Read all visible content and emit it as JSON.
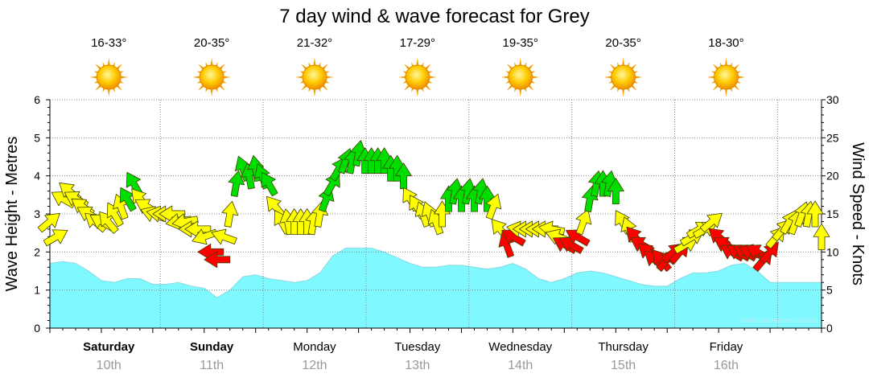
{
  "chart_data": {
    "type": "area",
    "title": "7 day wind & wave forecast for Grey",
    "ylabel_left": "Wave Height - Metres",
    "ylabel_right": "Wind Speed - Knots",
    "ylim_left": [
      0,
      6
    ],
    "ylim_right": [
      0,
      30
    ],
    "yticks_left": [
      "0",
      "1",
      "2",
      "3",
      "4",
      "5",
      "6"
    ],
    "yticks_right": [
      "0",
      "5",
      "10",
      "15",
      "20",
      "25",
      "30"
    ],
    "days": [
      {
        "name": "Saturday",
        "date": "10th",
        "temp": "16-33°",
        "bold": true
      },
      {
        "name": "Sunday",
        "date": "11th",
        "temp": "20-35°",
        "bold": true
      },
      {
        "name": "Monday",
        "date": "12th",
        "temp": "21-32°",
        "bold": false
      },
      {
        "name": "Tuesday",
        "date": "13th",
        "temp": "17-29°",
        "bold": false
      },
      {
        "name": "Wednesday",
        "date": "14th",
        "temp": "19-35°",
        "bold": false
      },
      {
        "name": "Thursday",
        "date": "15th",
        "temp": "20-35°",
        "bold": false
      },
      {
        "name": "Friday",
        "date": "16th",
        "temp": "18-30°",
        "bold": false
      }
    ],
    "x_hours": [
      0,
      84,
      168
    ],
    "wave_height": [
      [
        0,
        1.7
      ],
      [
        6,
        1.75
      ],
      [
        12,
        1.7
      ],
      [
        18,
        1.5
      ],
      [
        24,
        1.25
      ],
      [
        30,
        1.2
      ],
      [
        36,
        1.3
      ],
      [
        42,
        1.3
      ],
      [
        48,
        1.15
      ],
      [
        54,
        1.15
      ],
      [
        60,
        1.2
      ],
      [
        66,
        1.1
      ],
      [
        72,
        1.05
      ],
      [
        78,
        0.8
      ],
      [
        84,
        1.0
      ],
      [
        90,
        1.35
      ],
      [
        96,
        1.4
      ],
      [
        102,
        1.3
      ],
      [
        108,
        1.25
      ],
      [
        114,
        1.2
      ],
      [
        120,
        1.25
      ],
      [
        126,
        1.45
      ],
      [
        132,
        1.9
      ],
      [
        138,
        2.1
      ],
      [
        144,
        2.1
      ],
      [
        150,
        2.1
      ],
      [
        156,
        2.0
      ],
      [
        162,
        1.85
      ],
      [
        168,
        1.7
      ],
      [
        174,
        1.6
      ],
      [
        180,
        1.6
      ],
      [
        186,
        1.65
      ],
      [
        192,
        1.65
      ],
      [
        198,
        1.6
      ],
      [
        204,
        1.55
      ],
      [
        210,
        1.6
      ],
      [
        216,
        1.7
      ],
      [
        222,
        1.55
      ],
      [
        228,
        1.3
      ],
      [
        234,
        1.2
      ],
      [
        240,
        1.3
      ],
      [
        246,
        1.45
      ],
      [
        252,
        1.5
      ],
      [
        258,
        1.45
      ],
      [
        264,
        1.35
      ],
      [
        270,
        1.25
      ],
      [
        276,
        1.15
      ],
      [
        282,
        1.1
      ],
      [
        288,
        1.1
      ],
      [
        294,
        1.3
      ],
      [
        300,
        1.45
      ],
      [
        306,
        1.45
      ],
      [
        312,
        1.5
      ],
      [
        318,
        1.65
      ],
      [
        324,
        1.7
      ],
      [
        330,
        1.5
      ],
      [
        336,
        1.2
      ],
      [
        342,
        1.2
      ],
      [
        348,
        1.2
      ],
      [
        354,
        1.2
      ],
      [
        360,
        1.2
      ]
    ],
    "wind": [
      {
        "h": 0,
        "kt": 14,
        "dir": 50,
        "c": "yellow"
      },
      {
        "h": 3,
        "kt": 12,
        "dir": 60,
        "c": "yellow"
      },
      {
        "h": 6,
        "kt": 17,
        "dir": 300,
        "c": "yellow"
      },
      {
        "h": 9,
        "kt": 18,
        "dir": 310,
        "c": "yellow"
      },
      {
        "h": 12,
        "kt": 17,
        "dir": 300,
        "c": "yellow"
      },
      {
        "h": 15,
        "kt": 16,
        "dir": 305,
        "c": "yellow"
      },
      {
        "h": 18,
        "kt": 15,
        "dir": 300,
        "c": "yellow"
      },
      {
        "h": 21,
        "kt": 14,
        "dir": 310,
        "c": "yellow"
      },
      {
        "h": 24,
        "kt": 14,
        "dir": 300,
        "c": "yellow"
      },
      {
        "h": 27,
        "kt": 14,
        "dir": 320,
        "c": "yellow"
      },
      {
        "h": 30,
        "kt": 15,
        "dir": 330,
        "c": "yellow"
      },
      {
        "h": 33,
        "kt": 16,
        "dir": 340,
        "c": "yellow"
      },
      {
        "h": 36,
        "kt": 17,
        "dir": 330,
        "c": "green"
      },
      {
        "h": 39,
        "kt": 19,
        "dir": 330,
        "c": "green"
      },
      {
        "h": 42,
        "kt": 17,
        "dir": 320,
        "c": "yellow"
      },
      {
        "h": 45,
        "kt": 16,
        "dir": 300,
        "c": "yellow"
      },
      {
        "h": 48,
        "kt": 15,
        "dir": 290,
        "c": "yellow"
      },
      {
        "h": 51,
        "kt": 15,
        "dir": 280,
        "c": "yellow"
      },
      {
        "h": 54,
        "kt": 15,
        "dir": 270,
        "c": "yellow"
      },
      {
        "h": 57,
        "kt": 15,
        "dir": 270,
        "c": "yellow"
      },
      {
        "h": 60,
        "kt": 14,
        "dir": 260,
        "c": "yellow"
      },
      {
        "h": 63,
        "kt": 14,
        "dir": 260,
        "c": "yellow"
      },
      {
        "h": 66,
        "kt": 13,
        "dir": 270,
        "c": "yellow"
      },
      {
        "h": 69,
        "kt": 13,
        "dir": 270,
        "c": "yellow"
      },
      {
        "h": 72,
        "kt": 12,
        "dir": 250,
        "c": "yellow"
      },
      {
        "h": 75,
        "kt": 10,
        "dir": 270,
        "c": "red"
      },
      {
        "h": 78,
        "kt": 9,
        "dir": 270,
        "c": "red"
      },
      {
        "h": 81,
        "kt": 12,
        "dir": 290,
        "c": "yellow"
      },
      {
        "h": 84,
        "kt": 15,
        "dir": 10,
        "c": "yellow"
      },
      {
        "h": 87,
        "kt": 19,
        "dir": 10,
        "c": "green"
      },
      {
        "h": 90,
        "kt": 21,
        "dir": 340,
        "c": "green"
      },
      {
        "h": 93,
        "kt": 20,
        "dir": 350,
        "c": "green"
      },
      {
        "h": 96,
        "kt": 21,
        "dir": 350,
        "c": "green"
      },
      {
        "h": 99,
        "kt": 20,
        "dir": 340,
        "c": "green"
      },
      {
        "h": 102,
        "kt": 19,
        "dir": 330,
        "c": "green"
      },
      {
        "h": 105,
        "kt": 16,
        "dir": 320,
        "c": "yellow"
      },
      {
        "h": 108,
        "kt": 14,
        "dir": 330,
        "c": "yellow"
      },
      {
        "h": 111,
        "kt": 14,
        "dir": 350,
        "c": "yellow"
      },
      {
        "h": 114,
        "kt": 14,
        "dir": 0,
        "c": "yellow"
      },
      {
        "h": 117,
        "kt": 14,
        "dir": 0,
        "c": "yellow"
      },
      {
        "h": 120,
        "kt": 14,
        "dir": 0,
        "c": "yellow"
      },
      {
        "h": 123,
        "kt": 14,
        "dir": 10,
        "c": "yellow"
      },
      {
        "h": 126,
        "kt": 15,
        "dir": 10,
        "c": "yellow"
      },
      {
        "h": 129,
        "kt": 17,
        "dir": 20,
        "c": "green"
      },
      {
        "h": 132,
        "kt": 19,
        "dir": 30,
        "c": "green"
      },
      {
        "h": 135,
        "kt": 21,
        "dir": 30,
        "c": "green"
      },
      {
        "h": 138,
        "kt": 22,
        "dir": 20,
        "c": "green"
      },
      {
        "h": 141,
        "kt": 22,
        "dir": 10,
        "c": "green"
      },
      {
        "h": 144,
        "kt": 23,
        "dir": 10,
        "c": "green"
      },
      {
        "h": 147,
        "kt": 22,
        "dir": 0,
        "c": "green"
      },
      {
        "h": 150,
        "kt": 22,
        "dir": 0,
        "c": "green"
      },
      {
        "h": 153,
        "kt": 22,
        "dir": 0,
        "c": "green"
      },
      {
        "h": 156,
        "kt": 22,
        "dir": 0,
        "c": "green"
      },
      {
        "h": 159,
        "kt": 21,
        "dir": 0,
        "c": "green"
      },
      {
        "h": 162,
        "kt": 21,
        "dir": 0,
        "c": "green"
      },
      {
        "h": 165,
        "kt": 20,
        "dir": 0,
        "c": "green"
      },
      {
        "h": 168,
        "kt": 17,
        "dir": 330,
        "c": "yellow"
      },
      {
        "h": 171,
        "kt": 16,
        "dir": 330,
        "c": "yellow"
      },
      {
        "h": 174,
        "kt": 15,
        "dir": 340,
        "c": "yellow"
      },
      {
        "h": 177,
        "kt": 15,
        "dir": 340,
        "c": "yellow"
      },
      {
        "h": 180,
        "kt": 14,
        "dir": 340,
        "c": "yellow"
      },
      {
        "h": 183,
        "kt": 15,
        "dir": 0,
        "c": "yellow"
      },
      {
        "h": 186,
        "kt": 17,
        "dir": 0,
        "c": "green"
      },
      {
        "h": 189,
        "kt": 18,
        "dir": 10,
        "c": "green"
      },
      {
        "h": 192,
        "kt": 17,
        "dir": 0,
        "c": "green"
      },
      {
        "h": 195,
        "kt": 18,
        "dir": 10,
        "c": "green"
      },
      {
        "h": 198,
        "kt": 17,
        "dir": 0,
        "c": "green"
      },
      {
        "h": 201,
        "kt": 18,
        "dir": 10,
        "c": "green"
      },
      {
        "h": 204,
        "kt": 17,
        "dir": 0,
        "c": "green"
      },
      {
        "h": 207,
        "kt": 16,
        "dir": 20,
        "c": "yellow"
      },
      {
        "h": 210,
        "kt": 13,
        "dir": 320,
        "c": "yellow"
      },
      {
        "h": 213,
        "kt": 11,
        "dir": 340,
        "c": "red"
      },
      {
        "h": 216,
        "kt": 12,
        "dir": 300,
        "c": "red"
      },
      {
        "h": 219,
        "kt": 13,
        "dir": 280,
        "c": "yellow"
      },
      {
        "h": 222,
        "kt": 13,
        "dir": 270,
        "c": "yellow"
      },
      {
        "h": 225,
        "kt": 13,
        "dir": 270,
        "c": "yellow"
      },
      {
        "h": 228,
        "kt": 13,
        "dir": 270,
        "c": "yellow"
      },
      {
        "h": 231,
        "kt": 13,
        "dir": 270,
        "c": "yellow"
      },
      {
        "h": 234,
        "kt": 13,
        "dir": 280,
        "c": "yellow"
      },
      {
        "h": 237,
        "kt": 12,
        "dir": 290,
        "c": "yellow"
      },
      {
        "h": 240,
        "kt": 11,
        "dir": 300,
        "c": "red"
      },
      {
        "h": 243,
        "kt": 11,
        "dir": 300,
        "c": "red"
      },
      {
        "h": 246,
        "kt": 12,
        "dir": 300,
        "c": "red"
      },
      {
        "h": 249,
        "kt": 14,
        "dir": 20,
        "c": "yellow"
      },
      {
        "h": 252,
        "kt": 17,
        "dir": 10,
        "c": "green"
      },
      {
        "h": 255,
        "kt": 19,
        "dir": 10,
        "c": "green"
      },
      {
        "h": 258,
        "kt": 19,
        "dir": 0,
        "c": "green"
      },
      {
        "h": 261,
        "kt": 19,
        "dir": 10,
        "c": "green"
      },
      {
        "h": 264,
        "kt": 18,
        "dir": 0,
        "c": "green"
      },
      {
        "h": 267,
        "kt": 14,
        "dir": 330,
        "c": "yellow"
      },
      {
        "h": 270,
        "kt": 13,
        "dir": 340,
        "c": "yellow"
      },
      {
        "h": 273,
        "kt": 12,
        "dir": 320,
        "c": "red"
      },
      {
        "h": 276,
        "kt": 11,
        "dir": 300,
        "c": "red"
      },
      {
        "h": 279,
        "kt": 10,
        "dir": 310,
        "c": "red"
      },
      {
        "h": 282,
        "kt": 9,
        "dir": 310,
        "c": "red"
      },
      {
        "h": 285,
        "kt": 9,
        "dir": 320,
        "c": "red"
      },
      {
        "h": 288,
        "kt": 9,
        "dir": 40,
        "c": "red"
      },
      {
        "h": 291,
        "kt": 10,
        "dir": 50,
        "c": "red"
      },
      {
        "h": 294,
        "kt": 10,
        "dir": 40,
        "c": "red"
      },
      {
        "h": 297,
        "kt": 11,
        "dir": 60,
        "c": "yellow"
      },
      {
        "h": 300,
        "kt": 12,
        "dir": 60,
        "c": "yellow"
      },
      {
        "h": 303,
        "kt": 13,
        "dir": 60,
        "c": "yellow"
      },
      {
        "h": 306,
        "kt": 13,
        "dir": 60,
        "c": "yellow"
      },
      {
        "h": 309,
        "kt": 14,
        "dir": 50,
        "c": "yellow"
      },
      {
        "h": 312,
        "kt": 12,
        "dir": 310,
        "c": "red"
      },
      {
        "h": 315,
        "kt": 11,
        "dir": 300,
        "c": "red"
      },
      {
        "h": 318,
        "kt": 10,
        "dir": 300,
        "c": "red"
      },
      {
        "h": 321,
        "kt": 10,
        "dir": 300,
        "c": "red"
      },
      {
        "h": 324,
        "kt": 10,
        "dir": 300,
        "c": "red"
      },
      {
        "h": 327,
        "kt": 10,
        "dir": 290,
        "c": "red"
      },
      {
        "h": 330,
        "kt": 10,
        "dir": 300,
        "c": "red"
      },
      {
        "h": 333,
        "kt": 9,
        "dir": 40,
        "c": "red"
      },
      {
        "h": 336,
        "kt": 10,
        "dir": 40,
        "c": "red"
      },
      {
        "h": 339,
        "kt": 12,
        "dir": 40,
        "c": "yellow"
      },
      {
        "h": 342,
        "kt": 13,
        "dir": 40,
        "c": "yellow"
      },
      {
        "h": 345,
        "kt": 14,
        "dir": 30,
        "c": "yellow"
      },
      {
        "h": 348,
        "kt": 14,
        "dir": 20,
        "c": "yellow"
      },
      {
        "h": 351,
        "kt": 15,
        "dir": 20,
        "c": "yellow"
      },
      {
        "h": 354,
        "kt": 15,
        "dir": 10,
        "c": "yellow"
      },
      {
        "h": 357,
        "kt": 15,
        "dir": 0,
        "c": "yellow"
      },
      {
        "h": 360,
        "kt": 12,
        "dir": 0,
        "c": "yellow"
      }
    ],
    "colors": {
      "wave_fill": "#7ff8ff",
      "wave_stroke": "#8ad8e0",
      "arrow_yellow": "#ffff00",
      "arrow_green": "#00dd00",
      "arrow_red": "#ff0000",
      "arrow_stroke": "#7a7a00",
      "grid": "#888888",
      "sun_core": "#ffc800",
      "sun_ray": "#f5a000"
    },
    "watermark": "www.seabreeze.com.au",
    "x_range_hours": [
      0,
      360
    ]
  }
}
